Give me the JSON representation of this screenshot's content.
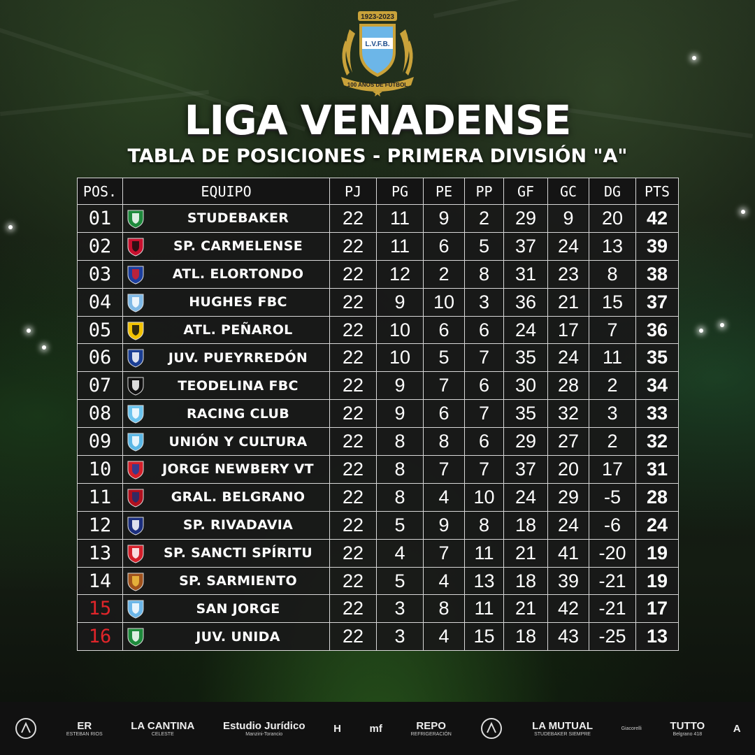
{
  "logo": {
    "years": "1923-2023",
    "initials": "L.V.F.B.",
    "ribbon": "100 AÑOS DE FÚTBOL"
  },
  "title": "LIGA VENADENSE",
  "subtitle": "TABLA DE POSICIONES - PRIMERA DIVISIÓN \"A\"",
  "columns": [
    "POS.",
    "EQUIPO",
    "PJ",
    "PG",
    "PE",
    "PP",
    "GF",
    "GC",
    "DG",
    "PTS"
  ],
  "rows": [
    {
      "pos": "01",
      "team": "STUDEBAKER",
      "pj": "22",
      "pg": "11",
      "pe": "9",
      "pp": "2",
      "gf": "29",
      "gc": "9",
      "dg": "20",
      "pts": "42",
      "badge": [
        "#1e8a3c",
        "#ffffff"
      ],
      "relegation": false
    },
    {
      "pos": "02",
      "team": "SP. CARMELENSE",
      "pj": "22",
      "pg": "11",
      "pe": "6",
      "pp": "5",
      "gf": "37",
      "gc": "24",
      "dg": "13",
      "pts": "39",
      "badge": [
        "#c8102e",
        "#111111"
      ],
      "relegation": false
    },
    {
      "pos": "03",
      "team": "ATL. ELORTONDO",
      "pj": "22",
      "pg": "12",
      "pe": "2",
      "pp": "8",
      "gf": "31",
      "gc": "23",
      "dg": "8",
      "pts": "38",
      "badge": [
        "#1c3f9e",
        "#d41f2a"
      ],
      "relegation": false
    },
    {
      "pos": "04",
      "team": "HUGHES FBC",
      "pj": "22",
      "pg": "9",
      "pe": "10",
      "pp": "3",
      "gf": "36",
      "gc": "21",
      "dg": "15",
      "pts": "37",
      "badge": [
        "#7fb9e6",
        "#ffffff"
      ],
      "relegation": false
    },
    {
      "pos": "05",
      "team": "ATL. PEÑAROL",
      "pj": "22",
      "pg": "10",
      "pe": "6",
      "pp": "6",
      "gf": "24",
      "gc": "17",
      "dg": "7",
      "pts": "36",
      "badge": [
        "#f2c200",
        "#111111"
      ],
      "relegation": false
    },
    {
      "pos": "06",
      "team": "JUV. PUEYRREDÓN",
      "pj": "22",
      "pg": "10",
      "pe": "5",
      "pp": "7",
      "gf": "35",
      "gc": "24",
      "dg": "11",
      "pts": "35",
      "badge": [
        "#1b3f94",
        "#ffffff"
      ],
      "relegation": false
    },
    {
      "pos": "07",
      "team": "TEODELINA FBC",
      "pj": "22",
      "pg": "9",
      "pe": "7",
      "pp": "6",
      "gf": "30",
      "gc": "28",
      "dg": "2",
      "pts": "34",
      "badge": [
        "#111111",
        "#ffffff"
      ],
      "relegation": false
    },
    {
      "pos": "08",
      "team": "RACING CLUB",
      "pj": "22",
      "pg": "9",
      "pe": "6",
      "pp": "7",
      "gf": "35",
      "gc": "32",
      "dg": "3",
      "pts": "33",
      "badge": [
        "#6cc4ee",
        "#ffffff"
      ],
      "relegation": false
    },
    {
      "pos": "09",
      "team": "UNIÓN Y CULTURA",
      "pj": "22",
      "pg": "8",
      "pe": "8",
      "pp": "6",
      "gf": "29",
      "gc": "27",
      "dg": "2",
      "pts": "32",
      "badge": [
        "#5cb8e6",
        "#ffffff"
      ],
      "relegation": false
    },
    {
      "pos": "10",
      "team": "JORGE NEWBERY VT",
      "pj": "22",
      "pg": "8",
      "pe": "7",
      "pp": "7",
      "gf": "37",
      "gc": "20",
      "dg": "17",
      "pts": "31",
      "badge": [
        "#d41f2a",
        "#1c3f9e"
      ],
      "relegation": false
    },
    {
      "pos": "11",
      "team": "GRAL. BELGRANO",
      "pj": "22",
      "pg": "8",
      "pe": "4",
      "pp": "10",
      "gf": "24",
      "gc": "29",
      "dg": "-5",
      "pts": "28",
      "badge": [
        "#b0101e",
        "#1c2f6e"
      ],
      "relegation": false
    },
    {
      "pos": "12",
      "team": "SP. RIVADAVIA",
      "pj": "22",
      "pg": "5",
      "pe": "9",
      "pp": "8",
      "gf": "18",
      "gc": "24",
      "dg": "-6",
      "pts": "24",
      "badge": [
        "#1c2f7e",
        "#ffffff"
      ],
      "relegation": false
    },
    {
      "pos": "13",
      "team": "SP. SANCTI SPÍRITU",
      "pj": "22",
      "pg": "4",
      "pe": "7",
      "pp": "11",
      "gf": "21",
      "gc": "41",
      "dg": "-20",
      "pts": "19",
      "badge": [
        "#d41f2a",
        "#ffffff"
      ],
      "relegation": false
    },
    {
      "pos": "14",
      "team": "SP. SARMIENTO",
      "pj": "22",
      "pg": "5",
      "pe": "4",
      "pp": "13",
      "gf": "18",
      "gc": "39",
      "dg": "-21",
      "pts": "19",
      "badge": [
        "#a0521c",
        "#f0c040"
      ],
      "relegation": false
    },
    {
      "pos": "15",
      "team": "SAN JORGE",
      "pj": "22",
      "pg": "3",
      "pe": "8",
      "pp": "11",
      "gf": "21",
      "gc": "42",
      "dg": "-21",
      "pts": "17",
      "badge": [
        "#6cb6e8",
        "#ffffff"
      ],
      "relegation": true
    },
    {
      "pos": "16",
      "team": "JUV. UNIDA",
      "pj": "22",
      "pg": "3",
      "pe": "4",
      "pp": "15",
      "gf": "18",
      "gc": "43",
      "dg": "-25",
      "pts": "13",
      "badge": [
        "#1e8a3c",
        "#ffffff"
      ],
      "relegation": true
    }
  ],
  "sponsors": [
    {
      "name": "dv-logo",
      "t1": "",
      "t2": ""
    },
    {
      "name": "esteban-rios",
      "t1": "ER",
      "t2": "ESTEBAN RIOS"
    },
    {
      "name": "la-cantina-celeste",
      "t1": "LA CANTINA",
      "t2": "CELESTE"
    },
    {
      "name": "estudio-juridico",
      "t1": "Estudio Jurídico",
      "t2": "Manzini-Torancio"
    },
    {
      "name": "h-logo",
      "t1": "H",
      "t2": ""
    },
    {
      "name": "mf-logo",
      "t1": "mf",
      "t2": ""
    },
    {
      "name": "repo-refrigeracion",
      "t1": "REPO",
      "t2": "REFRIGERACIÓN"
    },
    {
      "name": "asociacion-mutual",
      "t1": "",
      "t2": ""
    },
    {
      "name": "la-mutual",
      "t1": "LA MUTUAL",
      "t2": "STUDEBAKER SIEMPRE"
    },
    {
      "name": "giacorelli",
      "t1": "",
      "t2": "Giacorelli"
    },
    {
      "name": "tutto",
      "t1": "TUTTO",
      "t2": "Belgrano 418"
    },
    {
      "name": "a-logo",
      "t1": "A",
      "t2": ""
    }
  ],
  "colors": {
    "relegation": "#e0252a",
    "table_border": "#d8d8d8",
    "logo_gold": "#c9a23a",
    "logo_blue": "#6cb6e8"
  }
}
